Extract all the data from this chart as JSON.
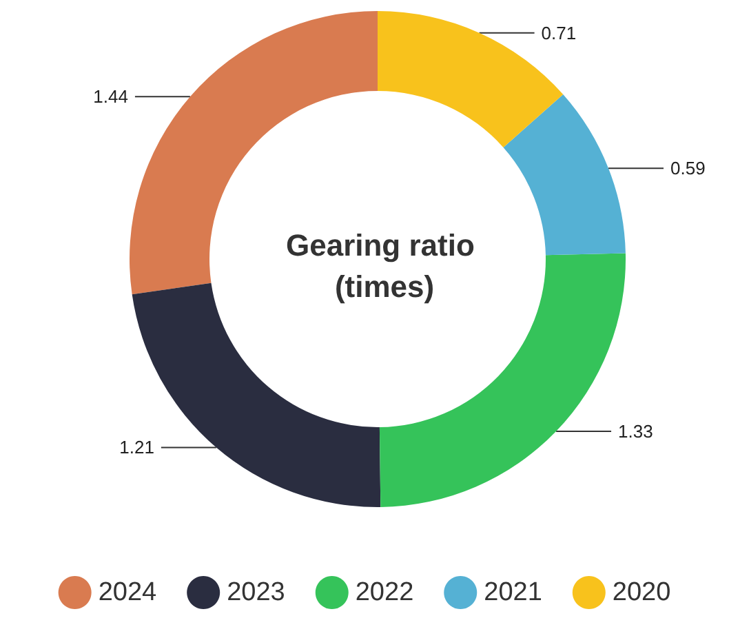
{
  "chart_data": {
    "type": "donut",
    "title": "Gearing ratio (times)",
    "categories": [
      "2024",
      "2023",
      "2022",
      "2021",
      "2020"
    ],
    "values": [
      1.44,
      1.21,
      1.33,
      0.59,
      0.71
    ],
    "colors": [
      "#d97b50",
      "#2a2d40",
      "#35c35a",
      "#55b1d4",
      "#f8c21c"
    ],
    "data_labels": true,
    "legend": "bottom"
  }
}
